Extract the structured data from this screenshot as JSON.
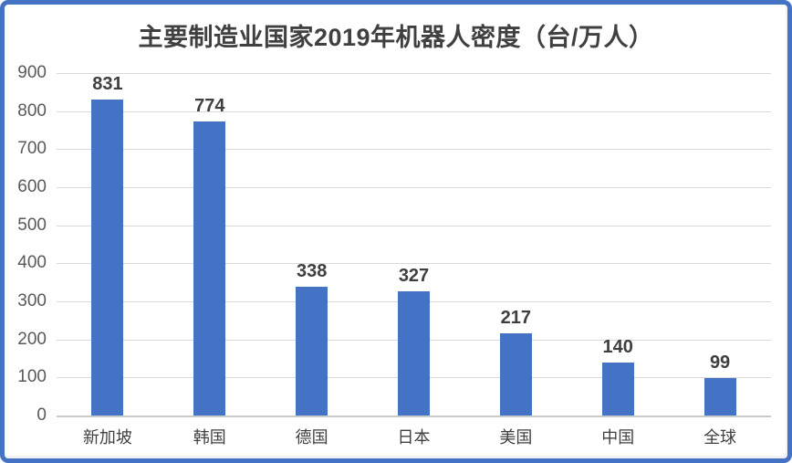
{
  "colors": {
    "bar": "#4472C4",
    "border": "#4472C4",
    "grid": "#D9D9D9",
    "baseline": "#C9C9C9",
    "tick_text": "#595959",
    "category_text": "#404040",
    "value_text": "#3F3F3F",
    "title_text": "#404040",
    "background": "#FFFFFF"
  },
  "chart_data": {
    "type": "bar",
    "title": "主要制造业国家2019年机器人密度（台/万人）",
    "categories": [
      "新加坡",
      "韩国",
      "德国",
      "日本",
      "美国",
      "中国",
      "全球"
    ],
    "values": [
      831,
      774,
      338,
      327,
      217,
      140,
      99
    ],
    "xlabel": "",
    "ylabel": "",
    "ylim": [
      0,
      900
    ],
    "yticks": [
      0,
      100,
      200,
      300,
      400,
      500,
      600,
      700,
      800,
      900
    ],
    "grid": true,
    "legend": false,
    "data_labels": true,
    "bar_color": "#4472C4"
  }
}
